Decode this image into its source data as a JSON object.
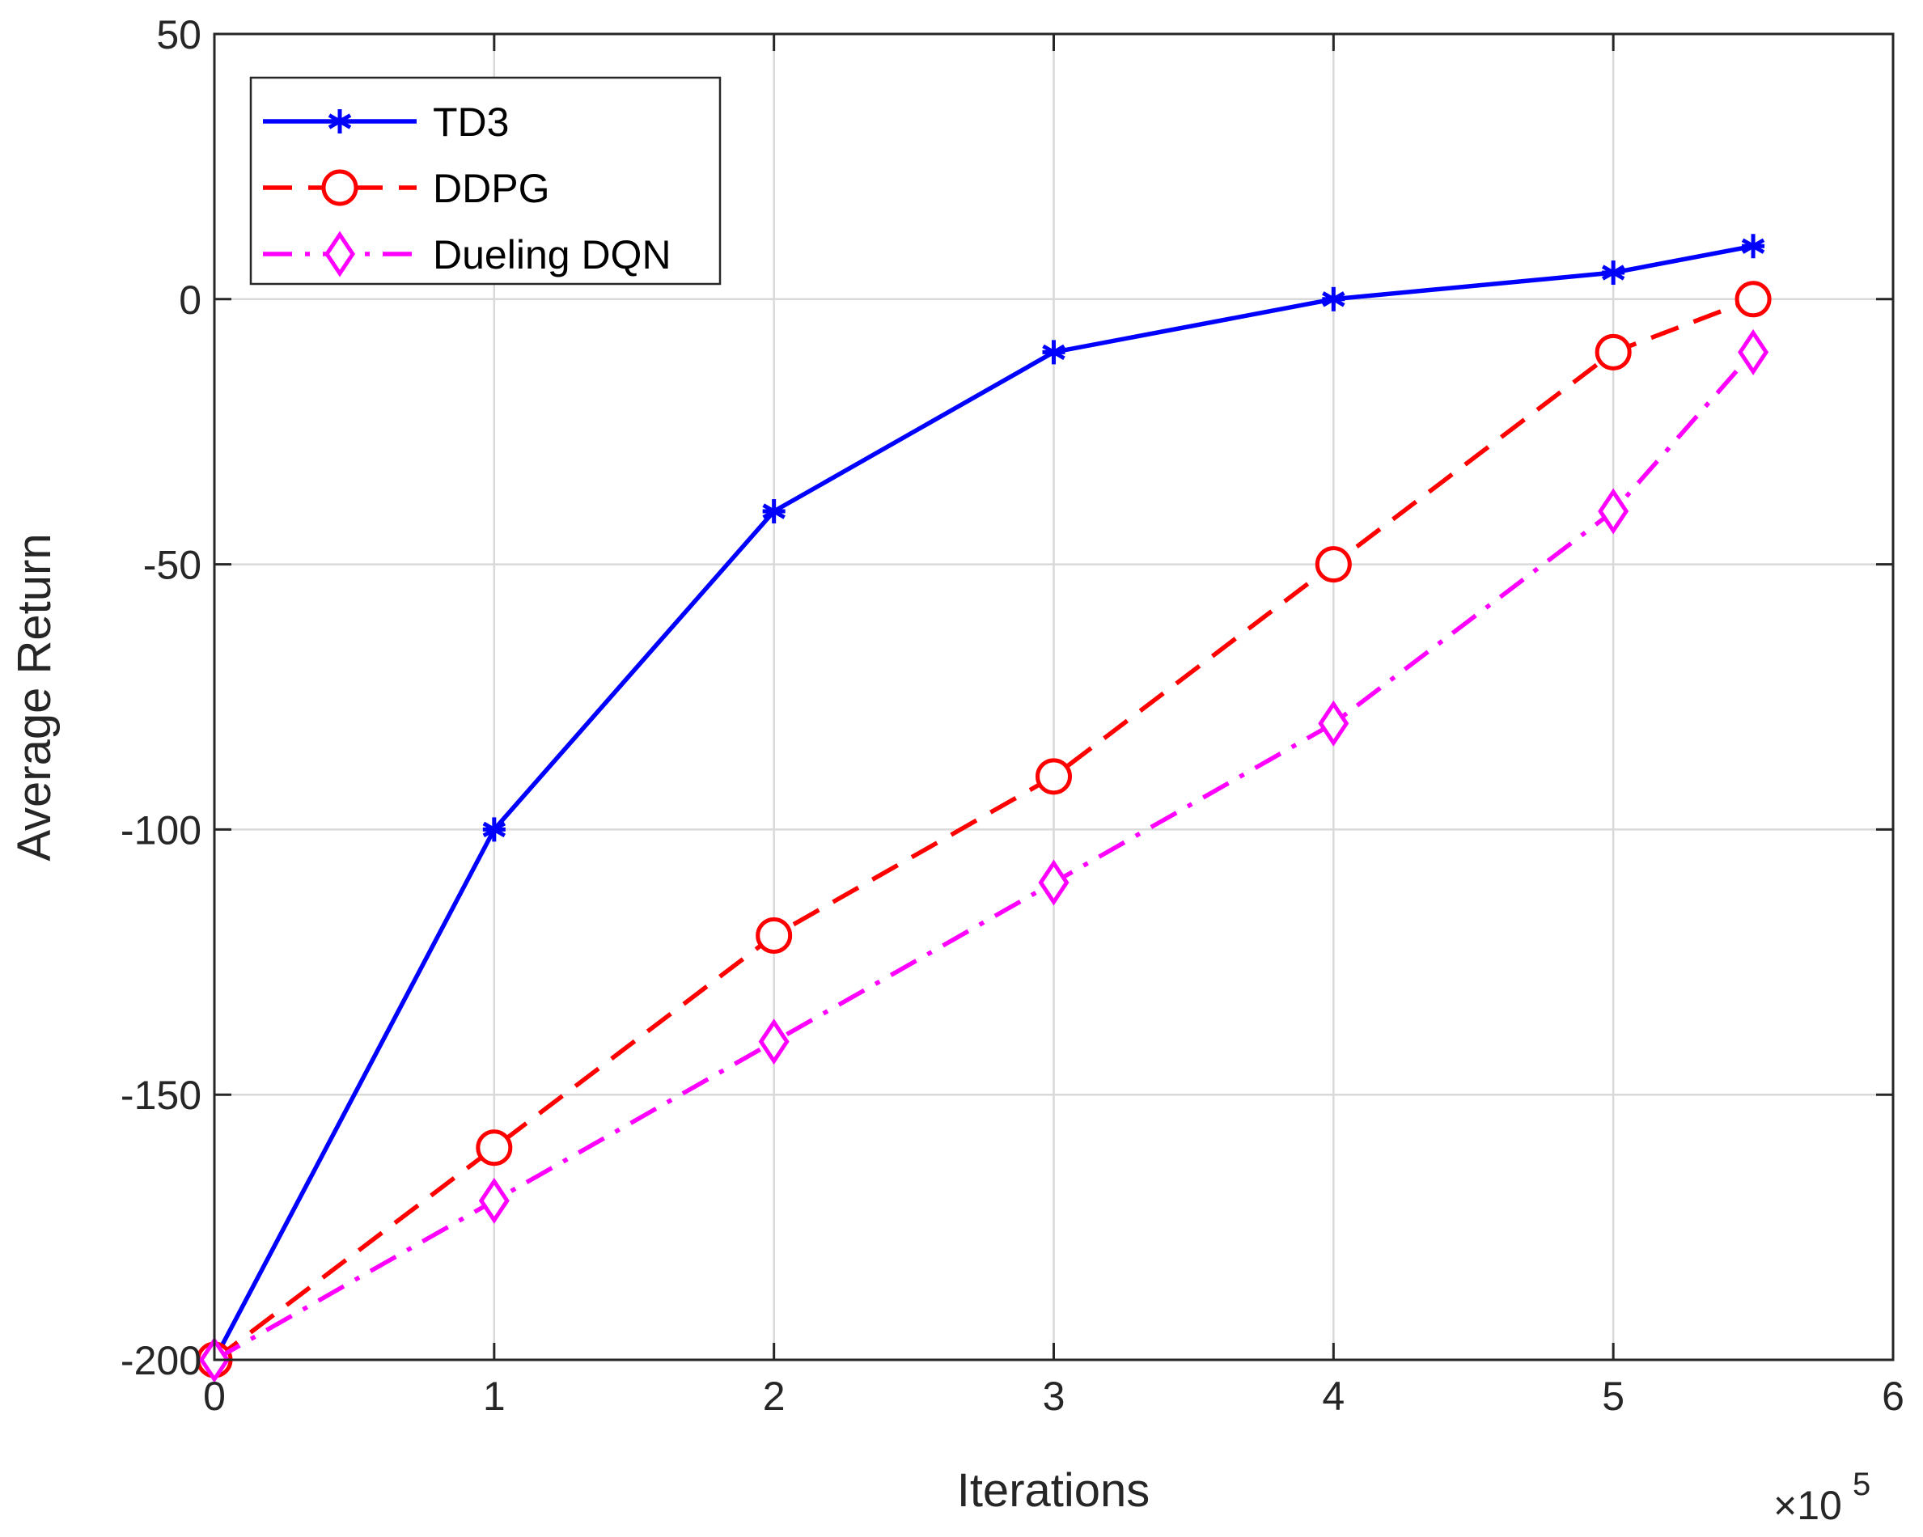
{
  "chart_data": {
    "type": "line",
    "title": "",
    "xlabel": "Iterations",
    "ylabel": "Average Return",
    "x_exponent": "×10",
    "x_exponent_power": "5",
    "xlim": [
      0,
      6
    ],
    "ylim": [
      -200,
      50
    ],
    "xticks": [
      0,
      1,
      2,
      3,
      4,
      5,
      6
    ],
    "yticks": [
      -200,
      -150,
      -100,
      -50,
      0,
      50
    ],
    "xtick_labels": [
      "0",
      "1",
      "2",
      "3",
      "4",
      "5",
      "6"
    ],
    "ytick_labels": [
      "-200",
      "-150",
      "-100",
      "-50",
      "0",
      "50"
    ],
    "grid": true,
    "legend_position": "top-left",
    "x": [
      0,
      1,
      2,
      3,
      4,
      5,
      5.5
    ],
    "series": [
      {
        "name": "TD3",
        "values": [
          -200,
          -100,
          -40,
          -10,
          0,
          5,
          10
        ],
        "color": "#0000ff",
        "dash": "solid",
        "marker": "asterisk"
      },
      {
        "name": "DDPG",
        "values": [
          -200,
          -160,
          -120,
          -90,
          -50,
          -10,
          0
        ],
        "color": "#ff0000",
        "dash": "dashed",
        "marker": "circle"
      },
      {
        "name": "Dueling DQN",
        "values": [
          -200,
          -170,
          -140,
          -110,
          -80,
          -40,
          -10
        ],
        "color": "#ff00ff",
        "dash": "dashdot",
        "marker": "diamond"
      }
    ]
  }
}
